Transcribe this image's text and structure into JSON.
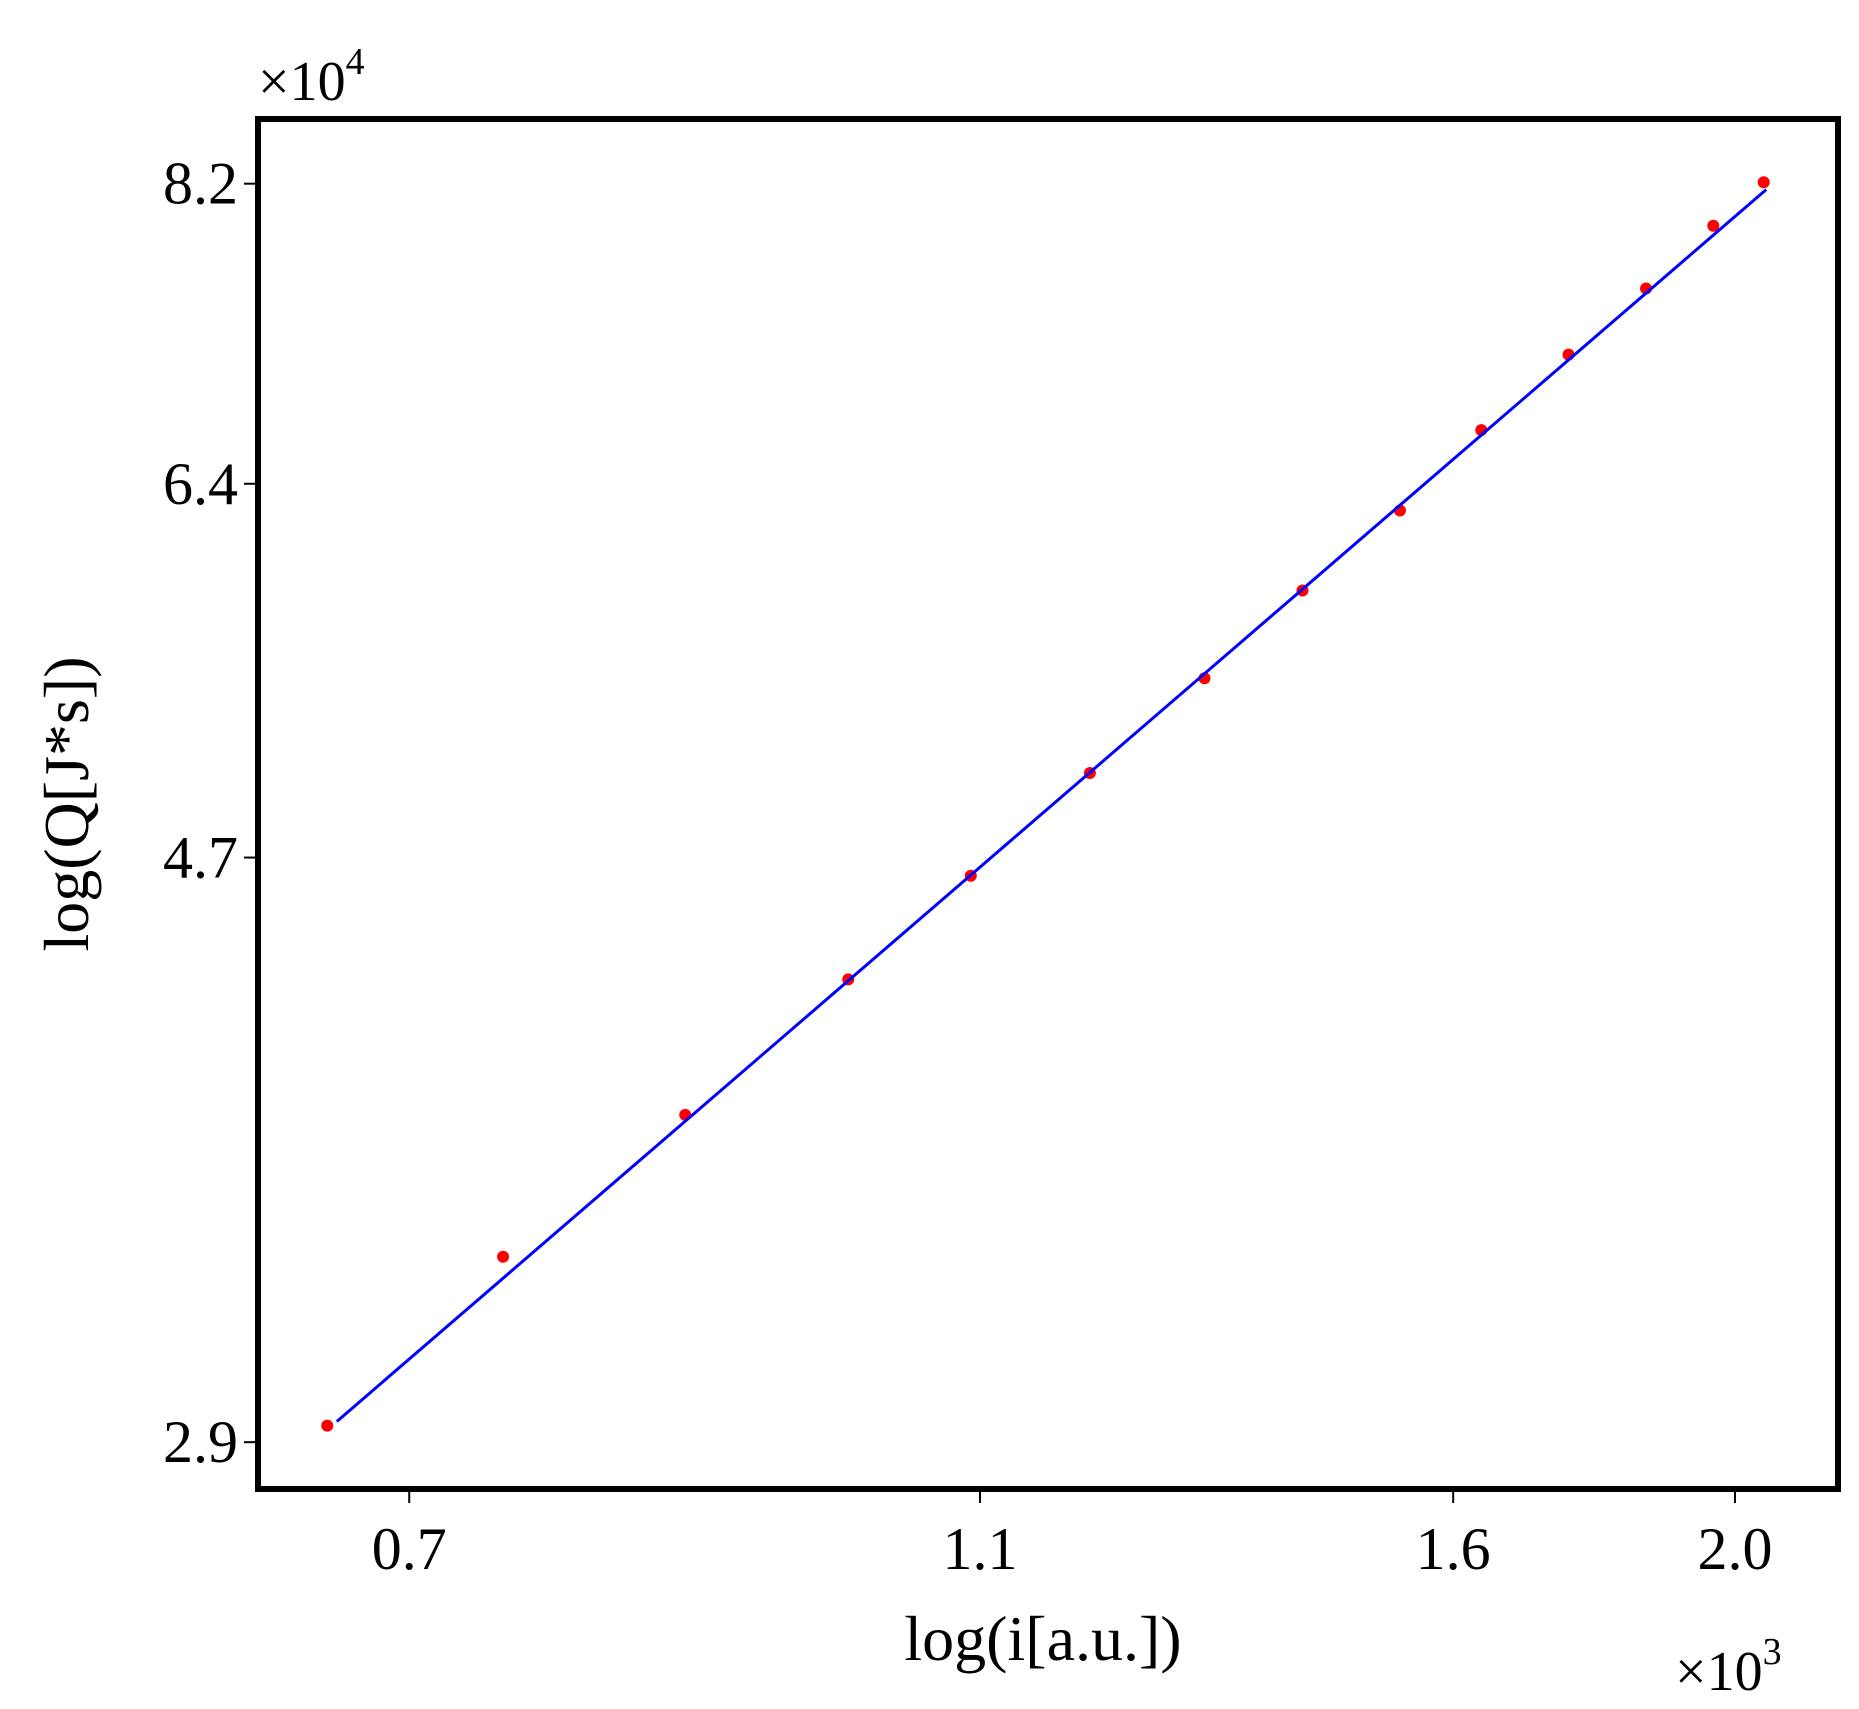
{
  "chart_data": {
    "type": "scatter",
    "x_label": "log(i[a.u.])",
    "y_label": "log(Q[J*s])",
    "x_offset": {
      "base": "×10",
      "exponent": "3"
    },
    "y_offset": {
      "base": "×10",
      "exponent": "4"
    },
    "xscale": "log",
    "yscale": "log",
    "xlim": [
      0.621,
      2.17
    ],
    "ylim": [
      2.79,
      8.65
    ],
    "xticks": [
      0.7,
      1.1,
      1.6,
      {
        "value": 2.0,
        "label": "2.0"
      }
    ],
    "yticks": [
      8.2,
      6.4,
      4.7,
      2.9
    ],
    "series": [
      {
        "mode": "markers",
        "color": "#ff0000",
        "x": [
          0.656,
          0.754,
          0.871,
          0.991,
          1.092,
          1.2,
          1.314,
          1.42,
          1.534,
          1.636,
          1.753,
          1.864,
          1.966,
          2.046
        ],
        "values": [
          2.94,
          3.38,
          3.8,
          4.25,
          4.63,
          5.04,
          5.45,
          5.86,
          6.26,
          6.69,
          7.12,
          7.52,
          7.92,
          8.21
        ]
      },
      {
        "mode": "line",
        "color": "#0000ff",
        "x": [
          0.661,
          2.05
        ],
        "values": [
          2.95,
          8.16
        ]
      }
    ]
  }
}
